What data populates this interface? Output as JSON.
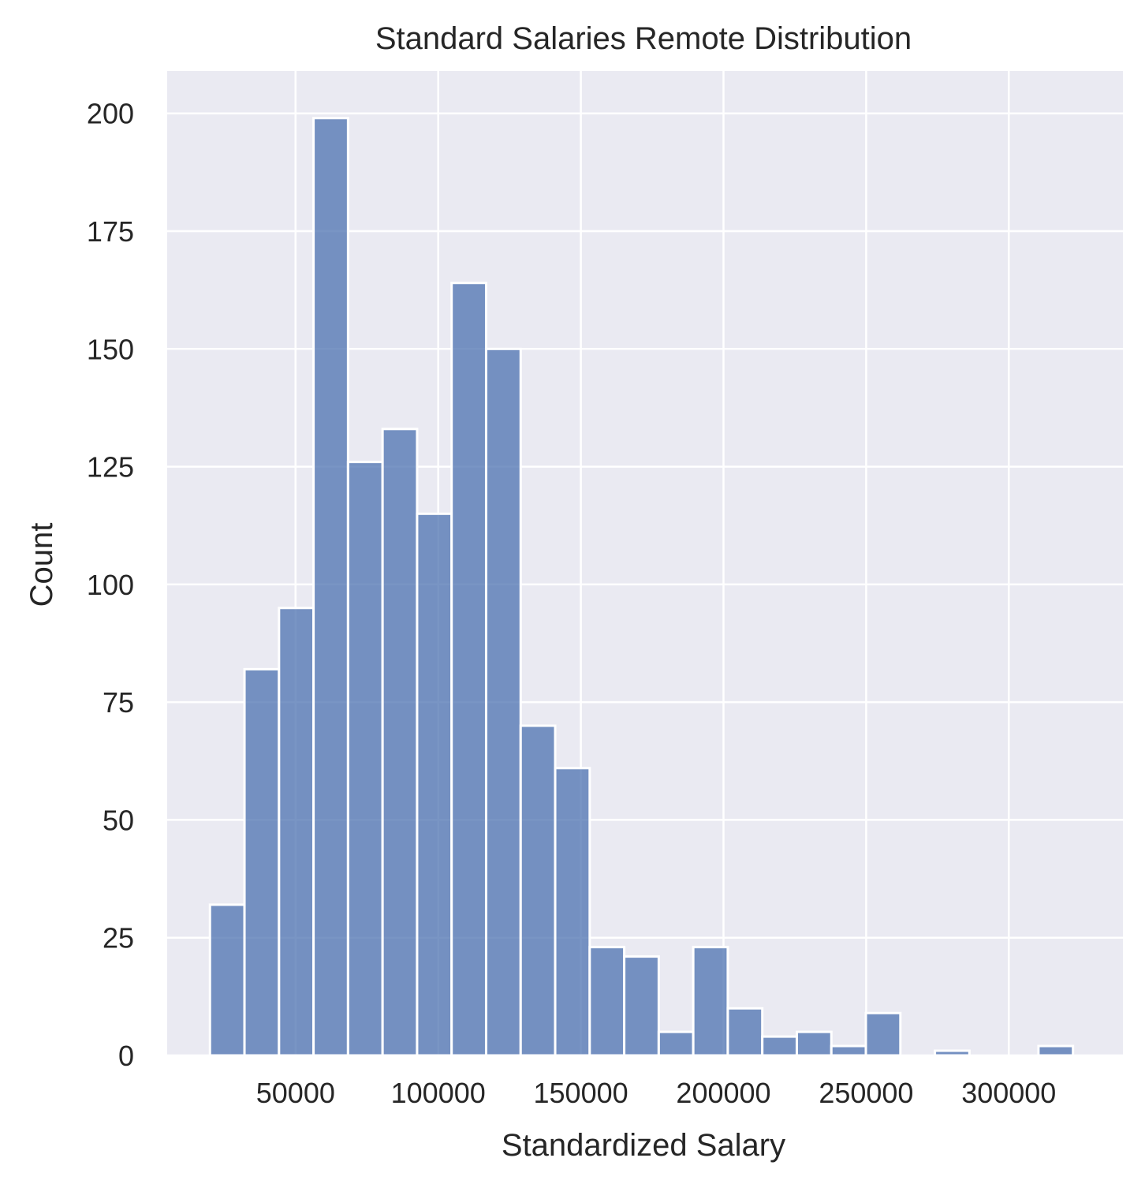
{
  "chart_data": {
    "type": "histogram",
    "title": "Standard Salaries Remote Distribution",
    "xlabel": "Standardized Salary",
    "ylabel": "Count",
    "xlim": [
      5000,
      340000
    ],
    "ylim": [
      0,
      209
    ],
    "x_ticks": [
      50000,
      100000,
      150000,
      200000,
      250000,
      300000
    ],
    "x_tick_labels": [
      "50000",
      "100000",
      "150000",
      "200000",
      "250000",
      "300000"
    ],
    "y_ticks": [
      0,
      25,
      50,
      75,
      100,
      125,
      150,
      175,
      200
    ],
    "y_tick_labels": [
      "0",
      "25",
      "50",
      "75",
      "100",
      "125",
      "150",
      "175",
      "200"
    ],
    "grid": true,
    "legend": "none",
    "colors": {
      "background": "#eaeaf2",
      "grid": "#ffffff",
      "bar_fill": "#4c72b0",
      "bar_opacity": 0.75,
      "bar_edge": "#ffffff",
      "text": "#262626"
    },
    "bin_width": 12100,
    "bins": [
      {
        "x_start": 20000,
        "count": 32
      },
      {
        "x_start": 32100,
        "count": 82
      },
      {
        "x_start": 44200,
        "count": 95
      },
      {
        "x_start": 56300,
        "count": 199
      },
      {
        "x_start": 68400,
        "count": 126
      },
      {
        "x_start": 80500,
        "count": 133
      },
      {
        "x_start": 92600,
        "count": 115
      },
      {
        "x_start": 104700,
        "count": 164
      },
      {
        "x_start": 116800,
        "count": 150
      },
      {
        "x_start": 128900,
        "count": 70
      },
      {
        "x_start": 141000,
        "count": 61
      },
      {
        "x_start": 153100,
        "count": 23
      },
      {
        "x_start": 165200,
        "count": 21
      },
      {
        "x_start": 177300,
        "count": 5
      },
      {
        "x_start": 189400,
        "count": 23
      },
      {
        "x_start": 201500,
        "count": 10
      },
      {
        "x_start": 213600,
        "count": 4
      },
      {
        "x_start": 225700,
        "count": 5
      },
      {
        "x_start": 237800,
        "count": 2
      },
      {
        "x_start": 249900,
        "count": 9
      },
      {
        "x_start": 262000,
        "count": 0
      },
      {
        "x_start": 274100,
        "count": 1
      },
      {
        "x_start": 286200,
        "count": 0
      },
      {
        "x_start": 298300,
        "count": 0
      },
      {
        "x_start": 310400,
        "count": 2
      }
    ]
  }
}
